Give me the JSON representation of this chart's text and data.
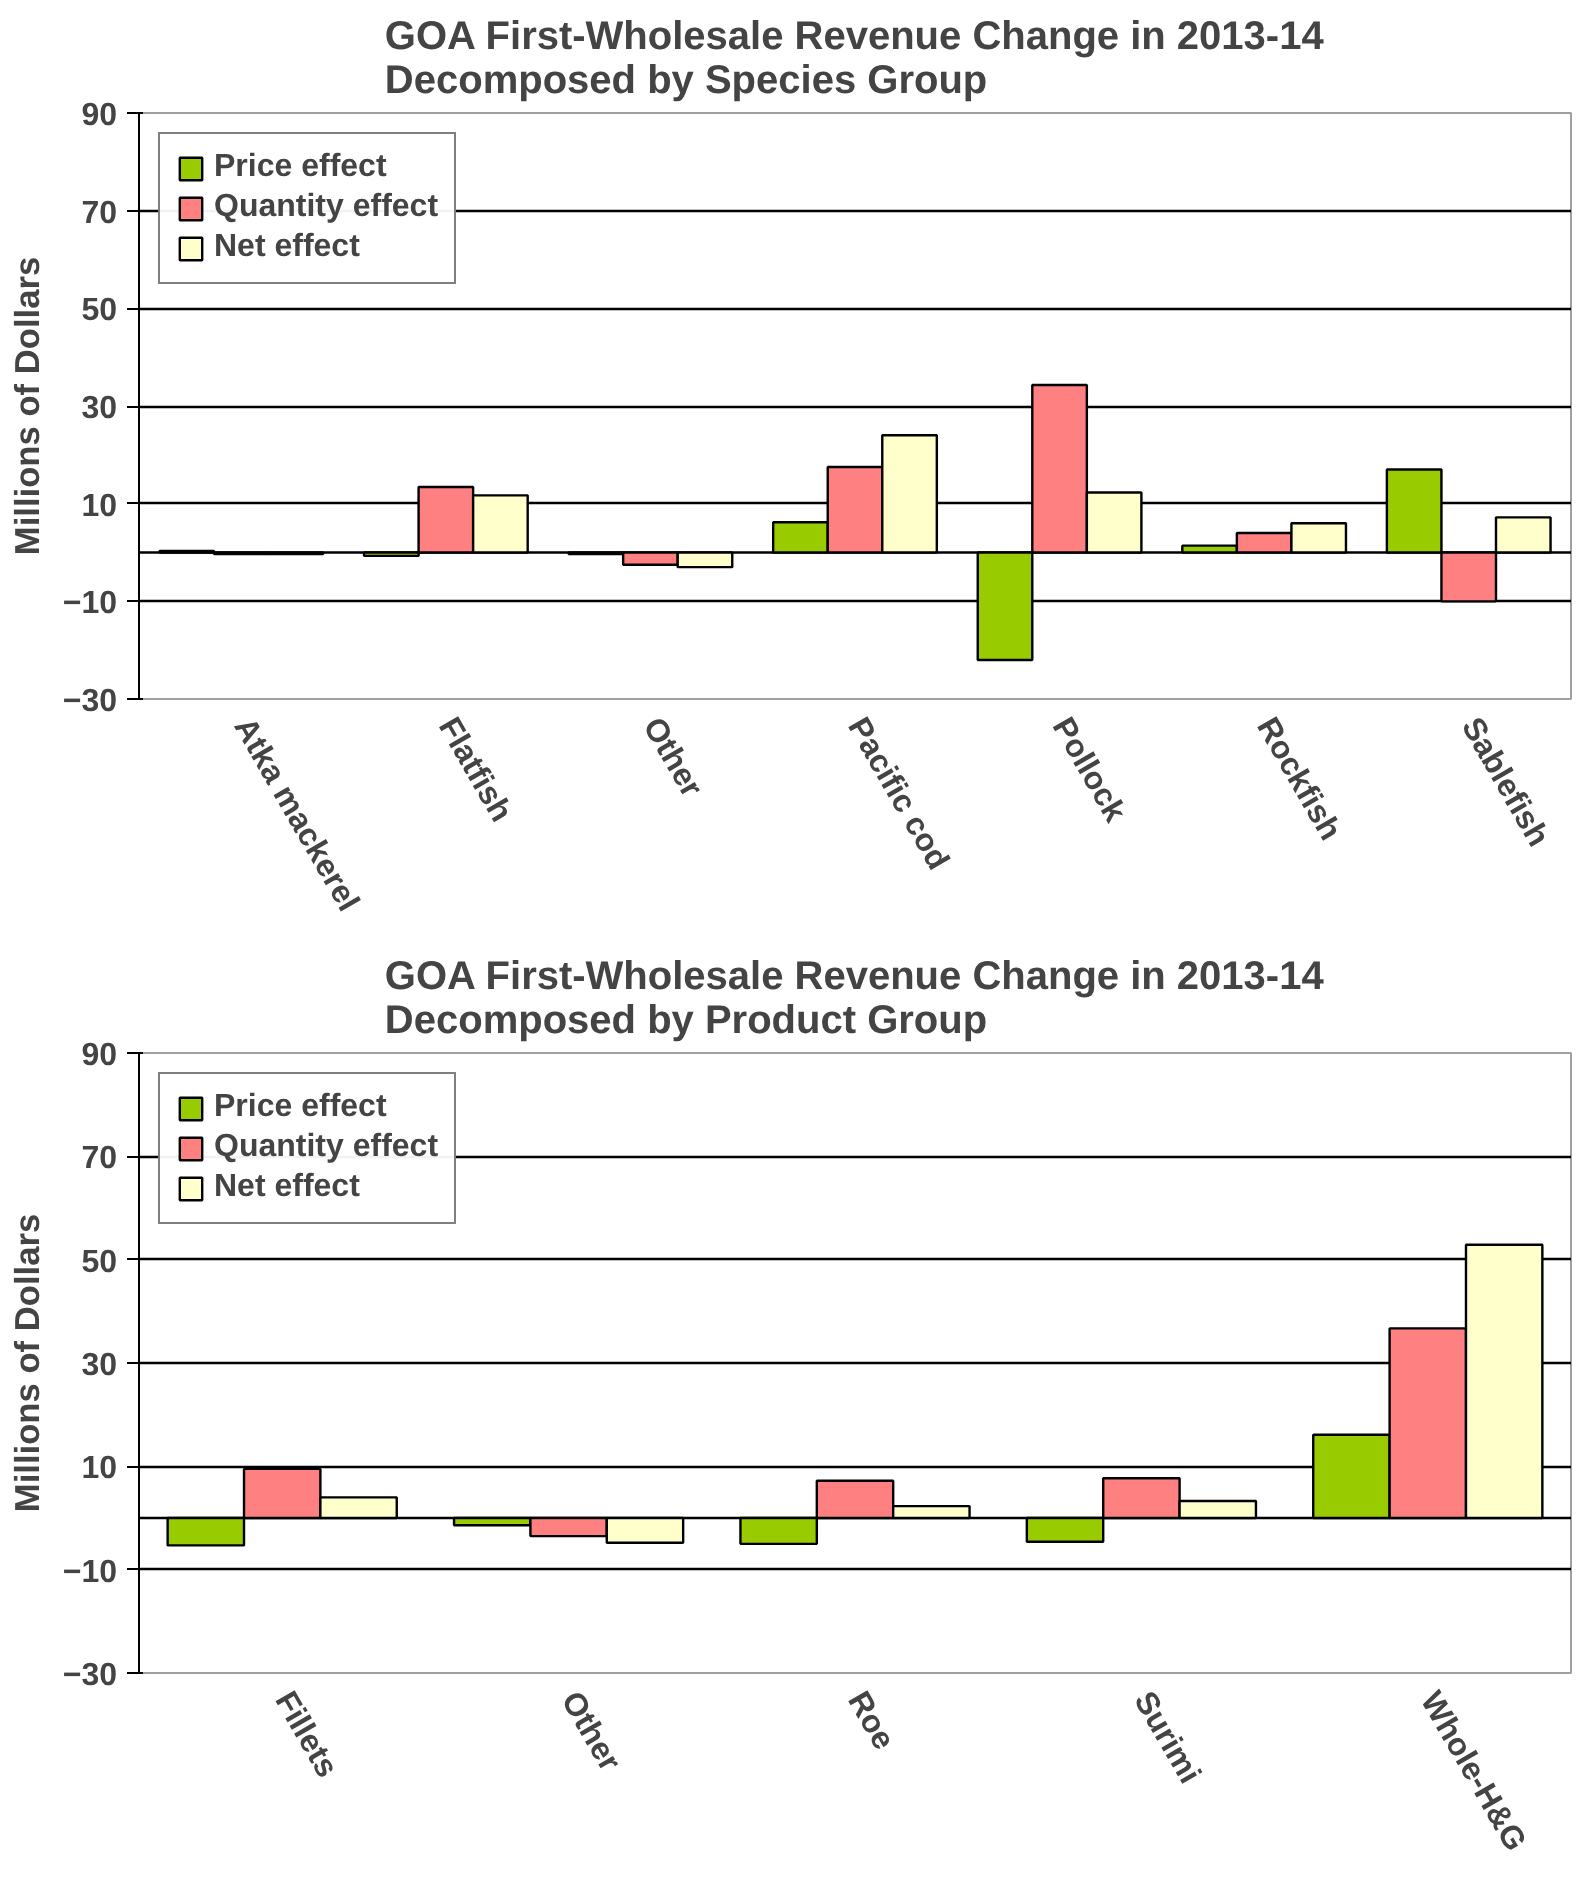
{
  "chart_data": [
    {
      "type": "bar",
      "title": "GOA First-Wholesale Revenue Change in 2013-14\nDecomposed by Species Group",
      "ylabel": "Millions of Dollars",
      "categories": [
        "Atka mackerel",
        "Flatfish",
        "Other",
        "Pacific cod",
        "Pollock",
        "Rockfish",
        "Sablefish"
      ],
      "series": [
        {
          "name": "Price effect",
          "color": "#99cc00",
          "values": [
            0.3,
            -0.7,
            -0.3,
            6.2,
            -22,
            1.4,
            17
          ]
        },
        {
          "name": "Quantity effect",
          "color": "#ff8080",
          "values": [
            -0.3,
            13.4,
            -2.5,
            17.5,
            34.3,
            4,
            -10
          ]
        },
        {
          "name": "Net effect",
          "color": "#ffffcc",
          "values": [
            -0.3,
            11.7,
            -3,
            24,
            12.3,
            6,
            7.2
          ]
        }
      ],
      "ylim": [
        -30,
        90
      ],
      "yticks": [
        -30,
        -10,
        10,
        30,
        50,
        70,
        90
      ],
      "grid": "y",
      "legend": "top left"
    },
    {
      "type": "bar",
      "title": "GOA First-Wholesale Revenue Change in 2013-14\nDecomposed by Product Group",
      "ylabel": "Millions of Dollars",
      "categories": [
        "Fillets",
        "Other",
        "Roe",
        "Surimi",
        "Whole-H&G"
      ],
      "series": [
        {
          "name": "Price effect",
          "color": "#99cc00",
          "values": [
            -5.3,
            -1.4,
            -5,
            -4.6,
            16.1
          ]
        },
        {
          "name": "Quantity effect",
          "color": "#ff8080",
          "values": [
            9.5,
            -3.5,
            7.2,
            7.7,
            36.7
          ]
        },
        {
          "name": "Net effect",
          "color": "#ffffcc",
          "values": [
            4,
            -4.8,
            2.3,
            3.3,
            52.9
          ]
        }
      ],
      "ylim": [
        -30,
        90
      ],
      "yticks": [
        -30,
        -10,
        10,
        30,
        50,
        70,
        90
      ],
      "grid": "y",
      "legend": "top left"
    }
  ]
}
